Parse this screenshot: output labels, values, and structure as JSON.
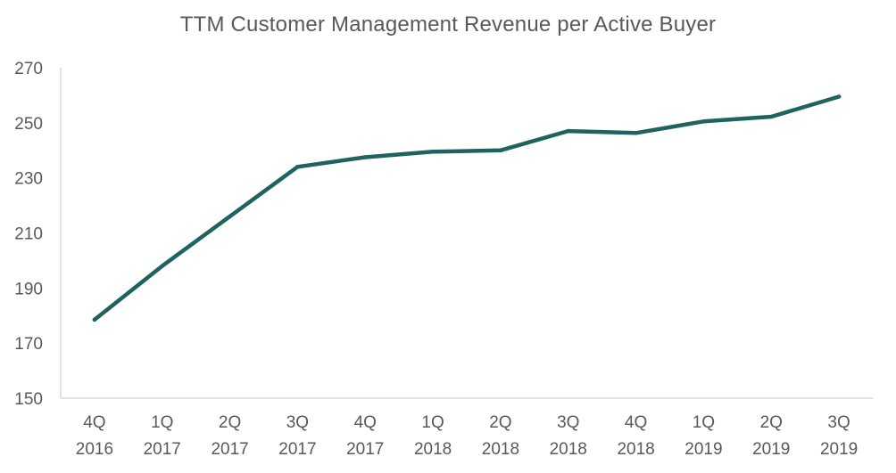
{
  "colors": {
    "line": "#1F6360",
    "axis": "#D9D9D9",
    "text": "#595959",
    "background": "#FFFFFF"
  },
  "chart_data": {
    "type": "line",
    "title": "TTM Customer Management Revenue per Active Buyer",
    "xlabel": "",
    "ylabel": "",
    "ylim": [
      150,
      270
    ],
    "yticks": [
      150,
      170,
      190,
      210,
      230,
      250,
      270
    ],
    "grid": false,
    "categories": [
      [
        "4Q",
        "2016"
      ],
      [
        "1Q",
        "2017"
      ],
      [
        "2Q",
        "2017"
      ],
      [
        "3Q",
        "2017"
      ],
      [
        "4Q",
        "2017"
      ],
      [
        "1Q",
        "2018"
      ],
      [
        "2Q",
        "2018"
      ],
      [
        "3Q",
        "2018"
      ],
      [
        "4Q",
        "2018"
      ],
      [
        "1Q",
        "2019"
      ],
      [
        "2Q",
        "2019"
      ],
      [
        "3Q",
        "2019"
      ]
    ],
    "series": [
      {
        "name": "TTM Customer Management Revenue per Active Buyer",
        "values": [
          178.5,
          198,
          216,
          234,
          237.5,
          239.5,
          240,
          247,
          246.3,
          250.5,
          252.2,
          259.5
        ]
      }
    ]
  }
}
